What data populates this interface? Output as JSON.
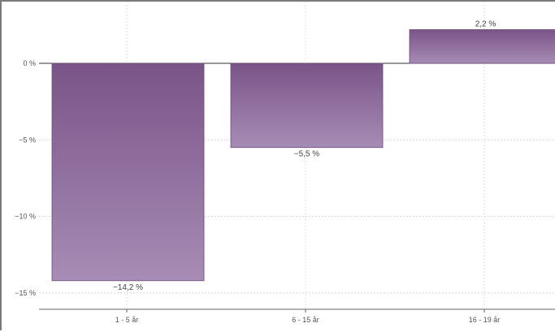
{
  "chart_data": {
    "type": "bar",
    "categories": [
      "1 - 5 år",
      "6 - 15 år",
      "16 - 19 år"
    ],
    "values": [
      -14.2,
      -5.5,
      2.2
    ],
    "value_labels": [
      "−14,2 %",
      "−5,5 %",
      "2,2 %"
    ],
    "y_ticks": [
      0,
      -5,
      -10,
      -15
    ],
    "y_tick_labels": [
      "0 %",
      "−5 %",
      "−10 %",
      "−15 %"
    ],
    "ylim": [
      -15.5,
      3.5
    ],
    "grid": true,
    "legend": "none",
    "bar_color_top": "#7a5488",
    "bar_color_bottom": "#a78cb5",
    "bar_border": "#6a4a78"
  }
}
